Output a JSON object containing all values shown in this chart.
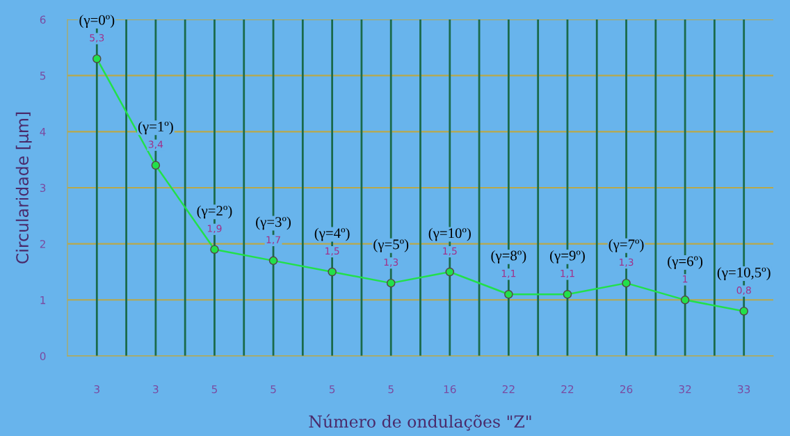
{
  "chart_data": {
    "type": "line",
    "xlabel": "Número de ondulações \"Z\"",
    "ylabel": "Circularidade [µm]",
    "categories": [
      "3",
      "3",
      "5",
      "5",
      "5",
      "5",
      "16",
      "22",
      "22",
      "26",
      "32",
      "33"
    ],
    "series": [
      {
        "color": "#22e04a",
        "values": [
          5.3,
          3.4,
          1.9,
          1.7,
          1.5,
          1.3,
          1.5,
          1.1,
          1.1,
          1.3,
          1,
          0.8
        ],
        "value_labels": [
          "5,3",
          "3,4",
          "1,9",
          "1,7",
          "1,5",
          "1,3",
          "1,5",
          "1,1",
          "1,1",
          "1,3",
          "1",
          "0,8"
        ]
      }
    ],
    "annotations": [
      "(γ=0º)",
      "(γ=1º)",
      "(γ=2º)",
      "(γ=3º)",
      "(γ=4º)",
      "(γ=5º)",
      "(γ=10º)",
      "(γ=8º)",
      "(γ=9º)",
      "(γ=7º)",
      "(γ=6º)",
      "(γ=10,5º)"
    ],
    "ylim": [
      0,
      6
    ],
    "yticks": [
      0,
      1,
      2,
      3,
      4,
      5,
      6
    ],
    "grid": true,
    "marker": "circle",
    "line_style": "solid",
    "legend": false
  }
}
